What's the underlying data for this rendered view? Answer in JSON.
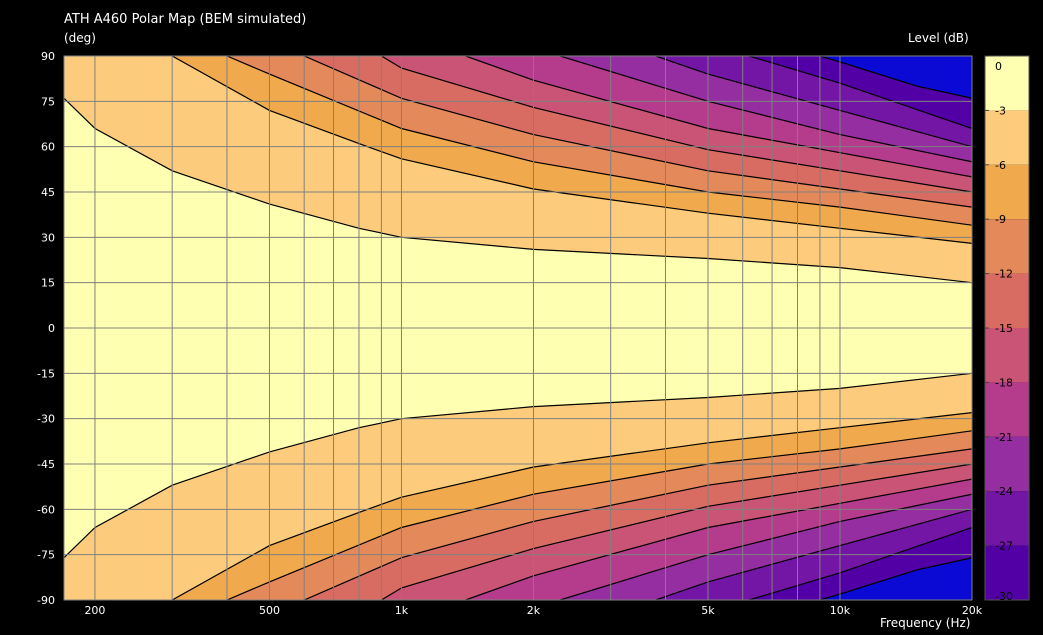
{
  "chart_data": {
    "type": "heatmap",
    "title": "ATH A460 Polar Map (BEM simulated)",
    "ylabel": "(deg)",
    "xlabel": "Frequency  (Hz)",
    "colorbar_label": "Level  (dB)",
    "x_scale": "log",
    "xlim": [
      170,
      20000
    ],
    "ylim": [
      -90,
      90
    ],
    "x_ticks": [
      {
        "value": 200,
        "label": "200"
      },
      {
        "value": 500,
        "label": "500"
      },
      {
        "value": 1000,
        "label": "1k"
      },
      {
        "value": 2000,
        "label": "2k"
      },
      {
        "value": 5000,
        "label": "5k"
      },
      {
        "value": 10000,
        "label": "10k"
      },
      {
        "value": 20000,
        "label": "20k"
      }
    ],
    "x_minor_gridlines": [
      200,
      300,
      400,
      500,
      600,
      700,
      800,
      900,
      1000,
      2000,
      3000,
      4000,
      5000,
      6000,
      7000,
      8000,
      9000,
      10000,
      20000
    ],
    "y_ticks": [
      90,
      75,
      60,
      45,
      30,
      15,
      0,
      -15,
      -30,
      -45,
      -60,
      -75,
      -90
    ],
    "y_tick_labels": [
      "90",
      "75",
      "60",
      "45",
      "30",
      "15",
      "0",
      "-15",
      "-30",
      "-45",
      "-60",
      "-75",
      "-90"
    ],
    "colorbar": {
      "range": [
        -30,
        0
      ],
      "levels": [
        0,
        -3,
        -6,
        -9,
        -12,
        -15,
        -18,
        -21,
        -24,
        -27,
        -30
      ],
      "tick_labels": [
        "0",
        "-3",
        "-6",
        "-9",
        "-12",
        "-15",
        "-18",
        "-21",
        "-24",
        "-27",
        "-30"
      ],
      "bands": [
        {
          "from": 0,
          "to": -3,
          "color": "#ffffb2"
        },
        {
          "from": -3,
          "to": -6,
          "color": "#fccc7c"
        },
        {
          "from": -6,
          "to": -9,
          "color": "#f0a94c"
        },
        {
          "from": -9,
          "to": -12,
          "color": "#e4895a"
        },
        {
          "from": -12,
          "to": -15,
          "color": "#d86c62"
        },
        {
          "from": -15,
          "to": -18,
          "color": "#c95475"
        },
        {
          "from": -18,
          "to": -21,
          "color": "#b53b8c"
        },
        {
          "from": -21,
          "to": -24,
          "color": "#952ea0"
        },
        {
          "from": -24,
          "to": -27,
          "color": "#7316a6"
        },
        {
          "from": -27,
          "to": -30,
          "color": "#5200a6"
        },
        {
          "from": -30,
          "to": -40,
          "color": "#0a0ad4"
        }
      ]
    },
    "contours": [
      {
        "level": -3,
        "angle_deg": [
          [
            170,
            76
          ],
          [
            200,
            66
          ],
          [
            300,
            52
          ],
          [
            500,
            41
          ],
          [
            800,
            33
          ],
          [
            1000,
            30
          ],
          [
            2000,
            26
          ],
          [
            5000,
            23
          ],
          [
            10000,
            20
          ],
          [
            20000,
            15
          ]
        ]
      },
      {
        "level": -6,
        "angle_deg": [
          [
            300,
            90
          ],
          [
            500,
            72
          ],
          [
            800,
            61
          ],
          [
            1000,
            56
          ],
          [
            2000,
            46
          ],
          [
            5000,
            38
          ],
          [
            10000,
            33
          ],
          [
            20000,
            28
          ]
        ]
      },
      {
        "level": -9,
        "angle_deg": [
          [
            400,
            90
          ],
          [
            500,
            84
          ],
          [
            1000,
            66
          ],
          [
            2000,
            55
          ],
          [
            5000,
            45
          ],
          [
            10000,
            40
          ],
          [
            20000,
            34
          ]
        ]
      },
      {
        "level": -12,
        "angle_deg": [
          [
            600,
            90
          ],
          [
            1000,
            76
          ],
          [
            2000,
            64
          ],
          [
            5000,
            52
          ],
          [
            10000,
            46
          ],
          [
            20000,
            40
          ]
        ]
      },
      {
        "level": -15,
        "angle_deg": [
          [
            900,
            90
          ],
          [
            1000,
            86
          ],
          [
            2000,
            73
          ],
          [
            5000,
            59
          ],
          [
            10000,
            52
          ],
          [
            20000,
            45
          ]
        ]
      },
      {
        "level": -18,
        "angle_deg": [
          [
            1400,
            90
          ],
          [
            2000,
            82
          ],
          [
            5000,
            66
          ],
          [
            10000,
            58
          ],
          [
            20000,
            50
          ]
        ]
      },
      {
        "level": -21,
        "angle_deg": [
          [
            2300,
            90
          ],
          [
            5000,
            75
          ],
          [
            10000,
            64
          ],
          [
            20000,
            55
          ]
        ]
      },
      {
        "level": -24,
        "angle_deg": [
          [
            3800,
            90
          ],
          [
            5000,
            84
          ],
          [
            10000,
            72
          ],
          [
            20000,
            60
          ]
        ]
      },
      {
        "level": -27,
        "angle_deg": [
          [
            6200,
            90
          ],
          [
            10000,
            81
          ],
          [
            20000,
            66
          ]
        ]
      },
      {
        "level": -30,
        "angle_deg": [
          [
            9000,
            90
          ],
          [
            10000,
            88
          ],
          [
            15000,
            80
          ],
          [
            20000,
            76
          ]
        ]
      }
    ]
  }
}
